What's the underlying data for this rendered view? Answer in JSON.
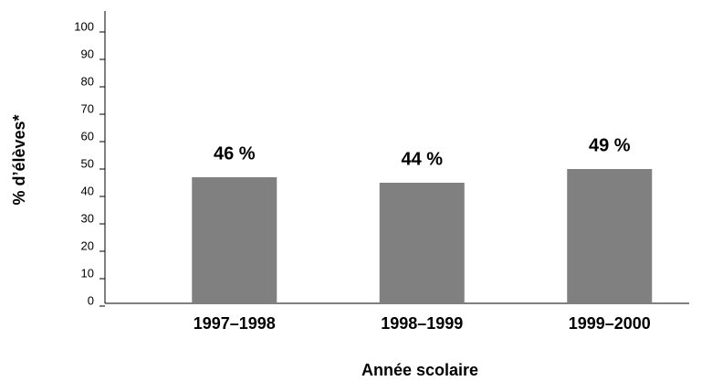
{
  "chart_data": {
    "type": "bar",
    "categories": [
      "1997–1998",
      "1998–1999",
      "1999–2000"
    ],
    "values": [
      46,
      44,
      49
    ],
    "value_labels": [
      "46 %",
      "44 %",
      "49 %"
    ],
    "color": "#808080",
    "x_label": "Année scolaire",
    "y_label": "% d’élèves*",
    "ylim": [
      0,
      100
    ],
    "yticks": [
      0,
      10,
      20,
      30,
      40,
      50,
      60,
      70,
      80,
      90,
      100
    ],
    "grid": false
  }
}
